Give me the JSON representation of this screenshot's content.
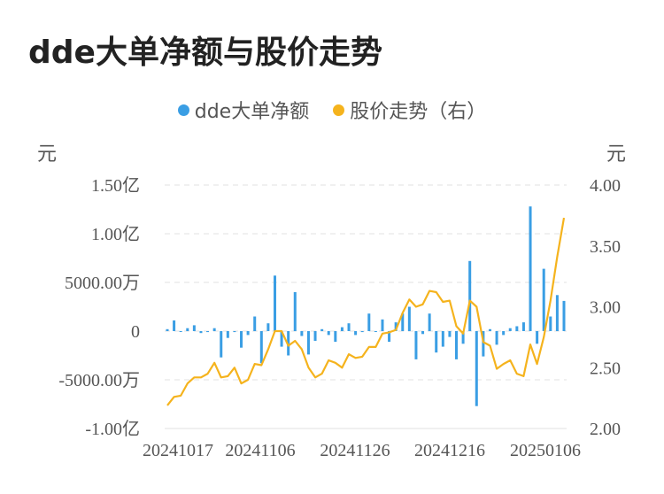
{
  "title": "dde大单净额与股价走势",
  "legend": {
    "left": "dde大单净额",
    "right": "股价走势（右）"
  },
  "units": {
    "left": "元",
    "right": "元"
  },
  "colors": {
    "bar": "#3a9ee4",
    "line": "#f5b31d",
    "grid": "#e8e8e8"
  },
  "chart_data": {
    "type": "bar+line",
    "x_ticks": [
      "20241017",
      "20241106",
      "20241126",
      "20241216",
      "20250106"
    ],
    "y_left": {
      "ticks": [
        "1.50亿",
        "1.00亿",
        "5000.00万",
        "0",
        "-5000.00万",
        "-1.00亿"
      ],
      "values": [
        150000000,
        100000000,
        50000000,
        0,
        -50000000,
        -100000000
      ],
      "range": [
        -100000000,
        150000000
      ]
    },
    "y_right": {
      "ticks": [
        "4.00",
        "3.50",
        "3.00",
        "2.50",
        "2.00"
      ],
      "values": [
        4.0,
        3.5,
        3.0,
        2.5,
        2.0
      ],
      "range": [
        2.0,
        4.0
      ]
    },
    "bars_left": [
      2,
      11,
      0,
      3,
      6,
      -2,
      -1,
      3,
      -27,
      -7,
      -1,
      -17,
      -4,
      15,
      -33,
      8,
      57,
      -16,
      -25,
      40,
      -5,
      -24,
      -10,
      2,
      -4,
      -11,
      4,
      8,
      -4,
      -1,
      18,
      0,
      12,
      -11,
      9,
      18,
      25,
      -29,
      -3,
      18,
      -22,
      -16,
      -6,
      -29,
      -13,
      72,
      -77,
      -26,
      2,
      -14,
      -4,
      3,
      5,
      9,
      128,
      -13,
      64,
      15,
      37,
      31
    ],
    "series_right": [
      2.19,
      2.26,
      2.27,
      2.37,
      2.42,
      2.42,
      2.45,
      2.54,
      2.42,
      2.43,
      2.5,
      2.37,
      2.4,
      2.53,
      2.52,
      2.65,
      2.8,
      2.8,
      2.68,
      2.72,
      2.65,
      2.5,
      2.42,
      2.45,
      2.56,
      2.54,
      2.5,
      2.61,
      2.58,
      2.59,
      2.67,
      2.67,
      2.78,
      2.79,
      2.81,
      2.95,
      3.06,
      3.0,
      3.02,
      3.13,
      3.12,
      3.04,
      3.05,
      2.84,
      2.78,
      3.05,
      3.0,
      2.71,
      2.68,
      2.49,
      2.53,
      2.56,
      2.45,
      2.43,
      2.69,
      2.53,
      2.75,
      3.05,
      3.41,
      3.73
    ]
  }
}
